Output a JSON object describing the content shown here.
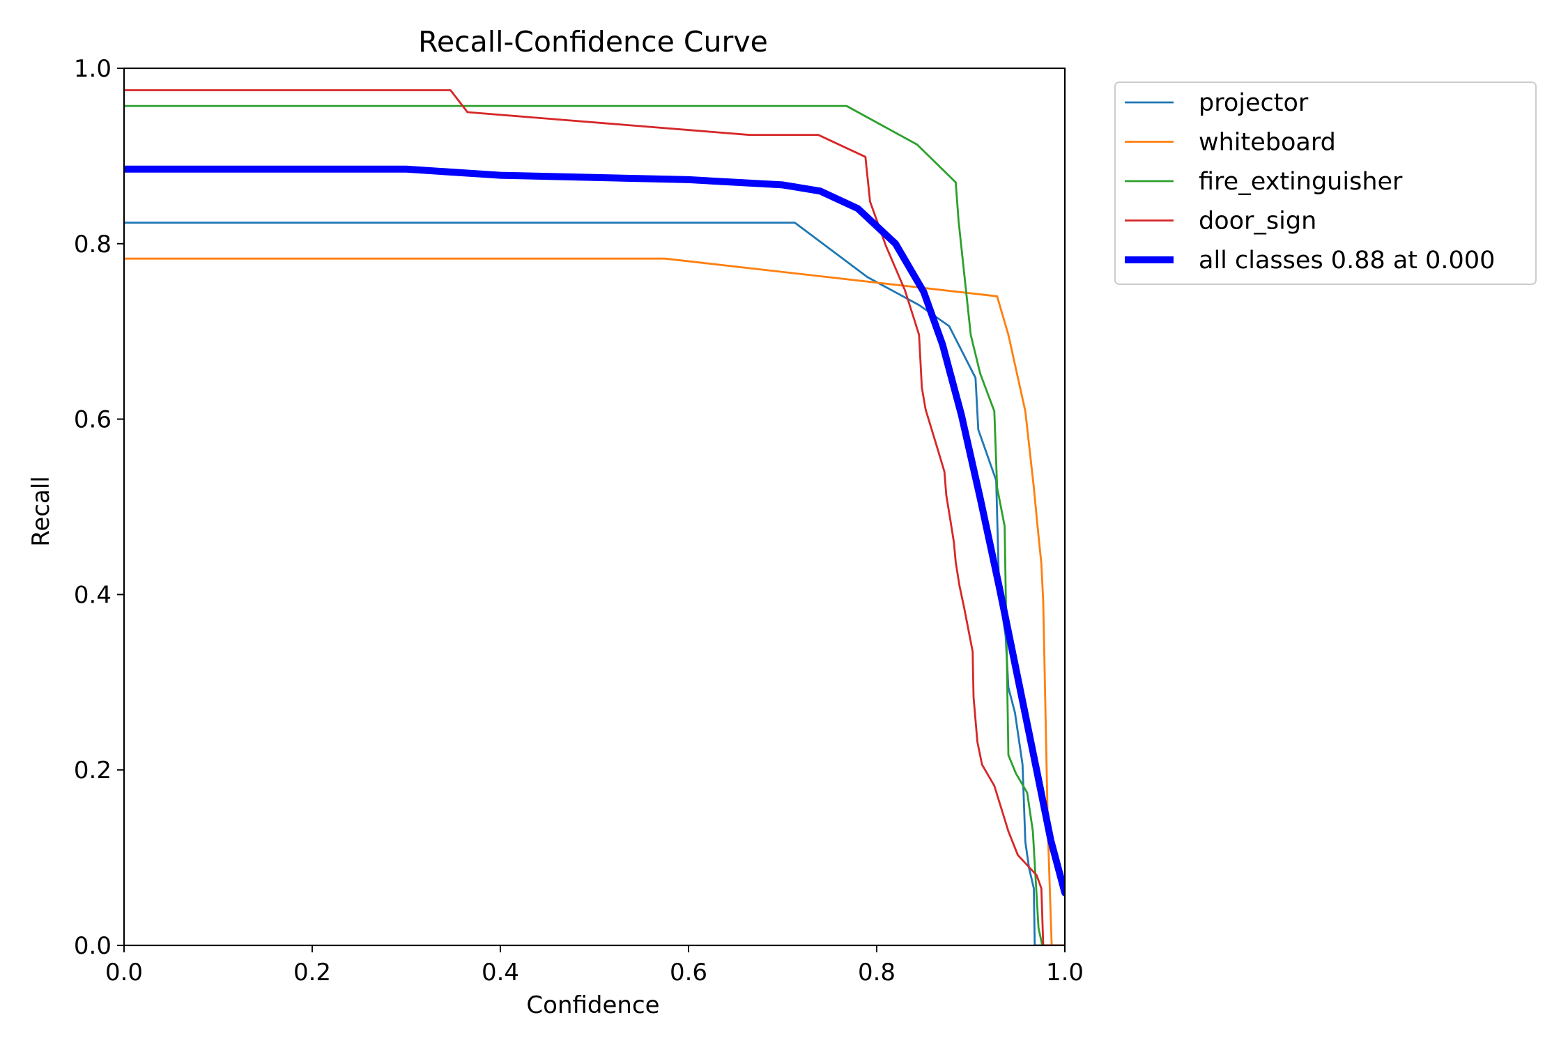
{
  "chart_data": {
    "type": "line",
    "title": "Recall-Confidence Curve",
    "xlabel": "Confidence",
    "ylabel": "Recall",
    "xlim": [
      0,
      1
    ],
    "ylim": [
      0,
      1
    ],
    "xticks": [
      "0.0",
      "0.2",
      "0.4",
      "0.6",
      "0.8",
      "1.0"
    ],
    "yticks": [
      "0.0",
      "0.2",
      "0.4",
      "0.6",
      "0.8",
      "1.0"
    ],
    "grid": false,
    "legend_position": "outside-top-right",
    "series": [
      {
        "name": "projector",
        "color": "#1f77b4",
        "x": [
          0,
          0.713,
          0.79,
          0.845,
          0.877,
          0.905,
          0.908,
          0.927,
          0.93,
          0.933,
          0.937,
          0.94,
          0.947,
          0.955,
          0.958,
          0.962,
          0.967,
          0.968,
          1.0
        ],
        "y": [
          0.824,
          0.824,
          0.762,
          0.73,
          0.706,
          0.647,
          0.588,
          0.53,
          0.412,
          0.382,
          0.353,
          0.294,
          0.265,
          0.206,
          0.118,
          0.088,
          0.065,
          0,
          0
        ]
      },
      {
        "name": "whiteboard",
        "color": "#ff7f0e",
        "x": [
          0,
          0.575,
          0.928,
          0.94,
          0.958,
          0.967,
          0.971,
          0.975,
          0.977,
          0.982,
          0.986,
          1.0
        ],
        "y": [
          0.783,
          0.783,
          0.74,
          0.696,
          0.609,
          0.522,
          0.478,
          0.435,
          0.391,
          0.13,
          0,
          0
        ]
      },
      {
        "name": "fire_extinguisher",
        "color": "#2ca02c",
        "x": [
          0,
          0.768,
          0.843,
          0.884,
          0.887,
          0.9,
          0.91,
          0.925,
          0.928,
          0.936,
          0.94,
          0.948,
          0.96,
          0.966,
          0.972,
          0.976,
          1.0
        ],
        "y": [
          0.957,
          0.957,
          0.913,
          0.87,
          0.826,
          0.696,
          0.652,
          0.609,
          0.522,
          0.478,
          0.217,
          0.196,
          0.174,
          0.13,
          0.02,
          0,
          0
        ]
      },
      {
        "name": "door_sign",
        "color": "#d62728",
        "x": [
          0,
          0.347,
          0.365,
          0.665,
          0.738,
          0.788,
          0.793,
          0.81,
          0.83,
          0.838,
          0.845,
          0.848,
          0.852,
          0.865,
          0.872,
          0.874,
          0.878,
          0.882,
          0.884,
          0.888,
          0.893,
          0.902,
          0.903,
          0.907,
          0.912,
          0.925,
          0.94,
          0.95,
          0.97,
          0.975,
          0.977,
          0.98,
          1.0
        ],
        "y": [
          0.975,
          0.975,
          0.95,
          0.924,
          0.924,
          0.899,
          0.848,
          0.797,
          0.747,
          0.72,
          0.696,
          0.636,
          0.611,
          0.565,
          0.54,
          0.513,
          0.487,
          0.46,
          0.437,
          0.41,
          0.385,
          0.335,
          0.283,
          0.232,
          0.206,
          0.182,
          0.13,
          0.103,
          0.08,
          0.065,
          0,
          0,
          0
        ]
      },
      {
        "name": "all classes 0.88 at 0.000",
        "color": "#0000ff",
        "bold": true,
        "x": [
          0,
          0.3,
          0.4,
          0.6,
          0.7,
          0.74,
          0.78,
          0.82,
          0.85,
          0.87,
          0.89,
          0.91,
          0.93,
          0.95,
          0.97,
          0.985,
          1.0
        ],
        "y": [
          0.885,
          0.885,
          0.878,
          0.873,
          0.867,
          0.86,
          0.84,
          0.8,
          0.745,
          0.685,
          0.605,
          0.51,
          0.41,
          0.305,
          0.2,
          0.12,
          0.06
        ]
      }
    ]
  }
}
